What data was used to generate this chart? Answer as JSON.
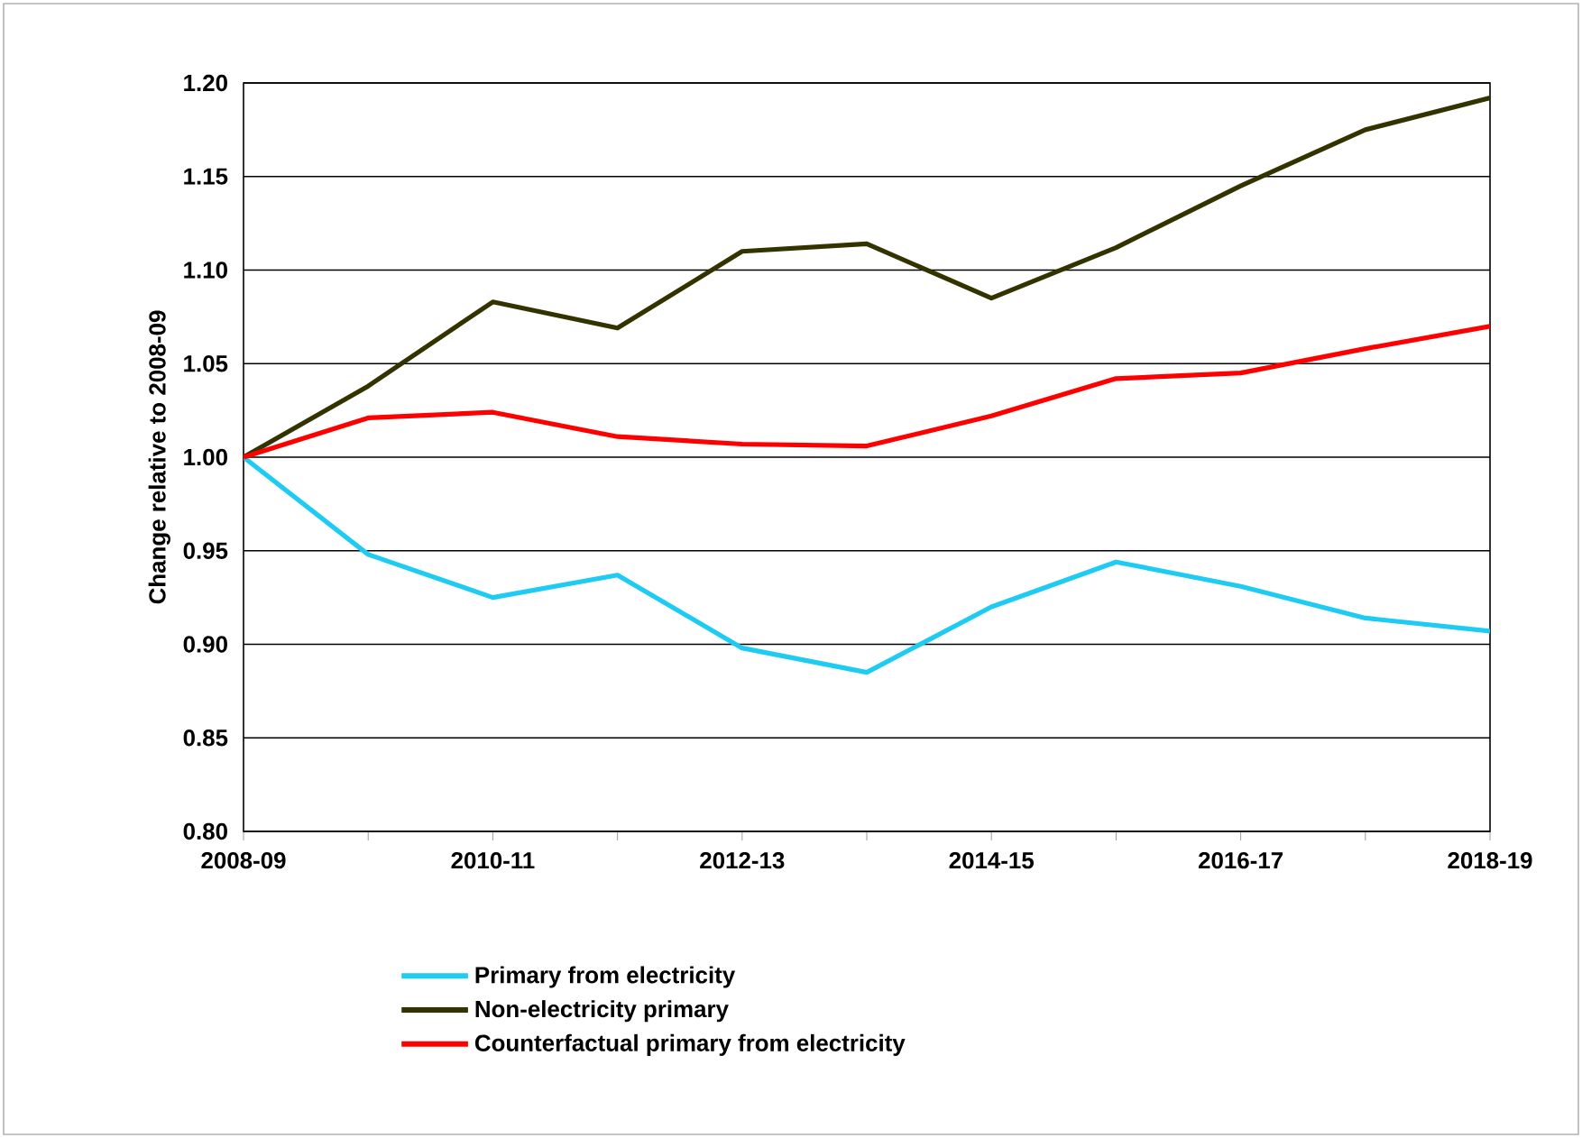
{
  "chart_data": {
    "type": "line",
    "ylabel": "Change relative to 2008-09",
    "categories": [
      "2008-09",
      null,
      "2010-11",
      null,
      "2012-13",
      null,
      "2014-15",
      null,
      "2016-17",
      null,
      "2018-19"
    ],
    "series": [
      {
        "name": "Primary from electricity",
        "color": "#1ecbf3",
        "values": [
          1.0,
          0.948,
          0.925,
          0.937,
          0.898,
          0.885,
          0.92,
          0.944,
          0.931,
          0.914,
          0.907
        ]
      },
      {
        "name": "Non-electricity primary",
        "color": "#333300",
        "values": [
          1.0,
          1.038,
          1.083,
          1.069,
          1.11,
          1.114,
          1.085,
          1.112,
          1.145,
          1.175,
          1.192
        ]
      },
      {
        "name": "Counterfactual primary from electricity",
        "color": "#ff0000",
        "values": [
          1.0,
          1.021,
          1.024,
          1.011,
          1.007,
          1.006,
          1.022,
          1.042,
          1.045,
          1.058,
          1.07
        ]
      }
    ],
    "ylim": [
      0.8,
      1.2
    ],
    "yticks": [
      {
        "value": 0.8,
        "label": "0.80"
      },
      {
        "value": 0.85,
        "label": "0.85"
      },
      {
        "value": 0.9,
        "label": "0.90"
      },
      {
        "value": 0.95,
        "label": "0.95"
      },
      {
        "value": 1.0,
        "label": "1.00"
      },
      {
        "value": 1.05,
        "label": "1.05"
      },
      {
        "value": 1.1,
        "label": "1.10"
      },
      {
        "value": 1.15,
        "label": "1.15"
      },
      {
        "value": 1.2,
        "label": "1.20"
      }
    ],
    "grid": "y",
    "legend": "bottom",
    "marker": "none",
    "line_style": "solid"
  }
}
